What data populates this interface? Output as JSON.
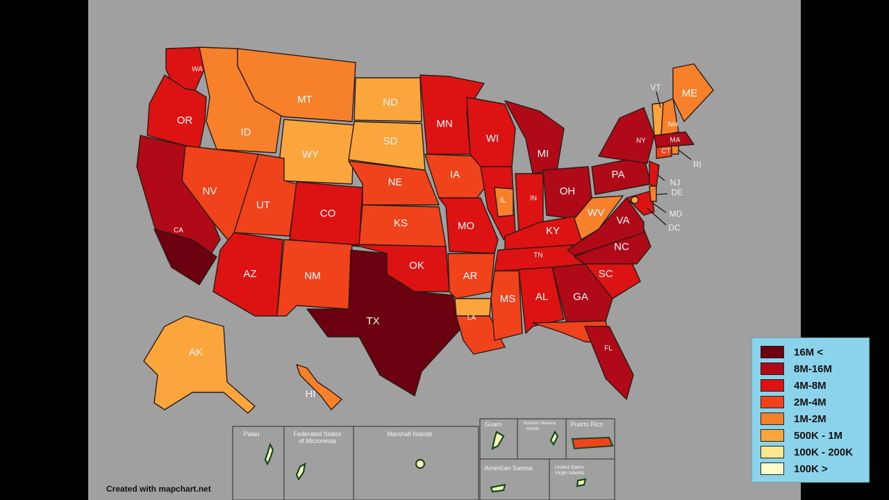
{
  "credit": "Created with mapchart.net",
  "colors": {
    "over_16m": "#6b0011",
    "m8_16": "#b00a18",
    "m4_8": "#dd1313",
    "m2_4": "#f0431c",
    "m1_2": "#f7812b",
    "k500_1m": "#fba53d",
    "k100_200": "#fee88f",
    "k100_less": "#fffccc"
  },
  "legend": [
    {
      "label": "16M <",
      "color": "#6b0011"
    },
    {
      "label": "8M-16M",
      "color": "#b00a18"
    },
    {
      "label": "4M-8M",
      "color": "#dd1313"
    },
    {
      "label": "2M-4M",
      "color": "#f0431c"
    },
    {
      "label": "1M-2M",
      "color": "#f7812b"
    },
    {
      "label": "500K - 1M",
      "color": "#fba53d"
    },
    {
      "label": "100K - 200K",
      "color": "#fee88f"
    },
    {
      "label": "100K >",
      "color": "#fffccc"
    }
  ],
  "states": {
    "WA": "WA",
    "OR": "OR",
    "CA": "CA",
    "ID": "ID",
    "NV": "NV",
    "MT": "MT",
    "WY": "WY",
    "UT": "UT",
    "AZ": "AZ",
    "CO": "CO",
    "NM": "NM",
    "ND": "ND",
    "SD": "SD",
    "NE": "NE",
    "KS": "KS",
    "OK": "OK",
    "TX": "TX",
    "MN": "MN",
    "IA": "IA",
    "MO": "MO",
    "AR": "AR",
    "LA": "LA",
    "WI": "WI",
    "IL": "IL",
    "MI": "MI",
    "IN": "IN",
    "OH": "OH",
    "KY": "KY",
    "TN": "TN",
    "MS": "MS",
    "AL": "AL",
    "GA": "GA",
    "FL": "FL",
    "SC": "SC",
    "NC": "NC",
    "VA": "VA",
    "WV": "WV",
    "PA": "PA",
    "NY": "NY",
    "ME": "ME",
    "VT": "VT",
    "NH": "NH",
    "MA": "MA",
    "CT": "CT",
    "RI": "RI",
    "NJ": "NJ",
    "DE": "DE",
    "MD": "MD",
    "DC": "DC",
    "AK": "AK",
    "HI": "HI"
  },
  "territories": {
    "palau": "Palau",
    "micronesia_1": "Federated States",
    "micronesia_2": "of Micronesia",
    "marshall": "Marshall Islands",
    "guam": "Guam",
    "nmi_1": "Northern Mariana",
    "nmi_2": "Islands",
    "puerto_rico": "Puerto Rico",
    "samoa": "American Samoa",
    "usvi_1": "United States",
    "usvi_2": "Virgin Islands"
  }
}
